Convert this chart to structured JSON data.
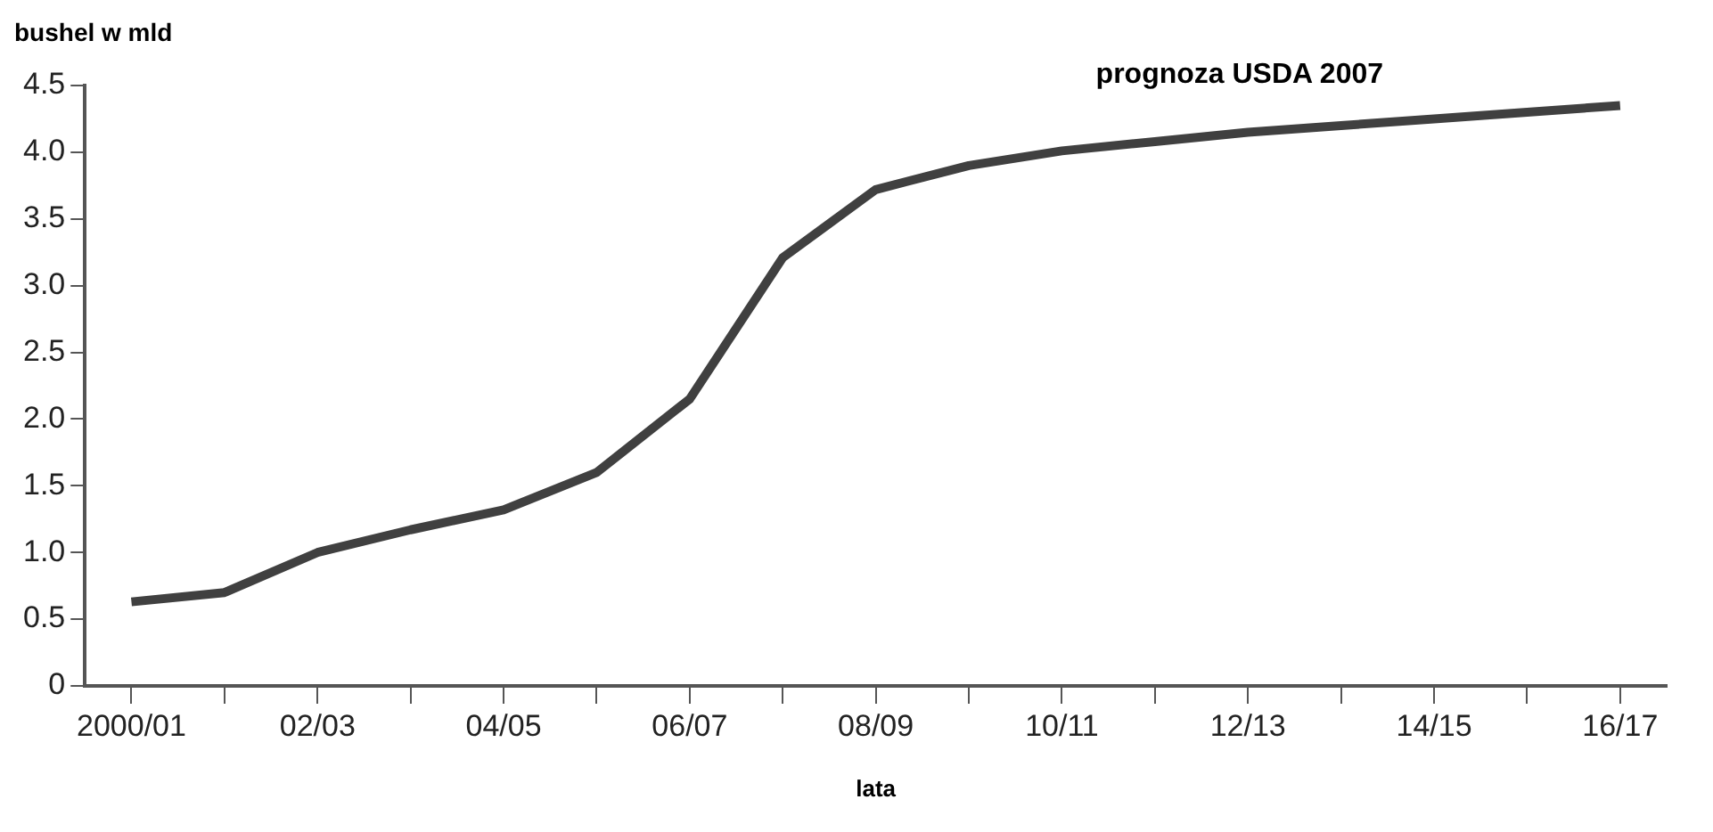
{
  "chart_data": {
    "type": "line",
    "xlabel": "lata",
    "ylabel": "bushel w mld",
    "annotations": [
      "prognoza USDA 2007"
    ],
    "categories": [
      "2000/01",
      null,
      "02/03",
      null,
      "04/05",
      null,
      "06/07",
      null,
      "08/09",
      null,
      "10/11",
      null,
      "12/13",
      null,
      "14/15",
      null,
      "16/17"
    ],
    "series": [
      {
        "color": "#404040",
        "values": [
          0.63,
          0.7,
          1.0,
          1.17,
          1.32,
          1.6,
          2.15,
          3.21,
          3.72,
          3.9,
          4.01,
          4.08,
          4.15,
          4.2,
          4.25,
          4.3,
          4.35
        ]
      }
    ],
    "ylim": [
      0,
      4.5
    ],
    "yticks": [
      0,
      0.5,
      {
        "value": 1,
        "label": "1.0"
      },
      1.5,
      {
        "value": 2,
        "label": "2.0"
      },
      2.5,
      {
        "value": 3,
        "label": "3.0"
      },
      3.5,
      {
        "value": 4,
        "label": "4.0"
      },
      4.5
    ],
    "grid": false,
    "legend": false,
    "marker": "none",
    "line_style": "solid"
  }
}
